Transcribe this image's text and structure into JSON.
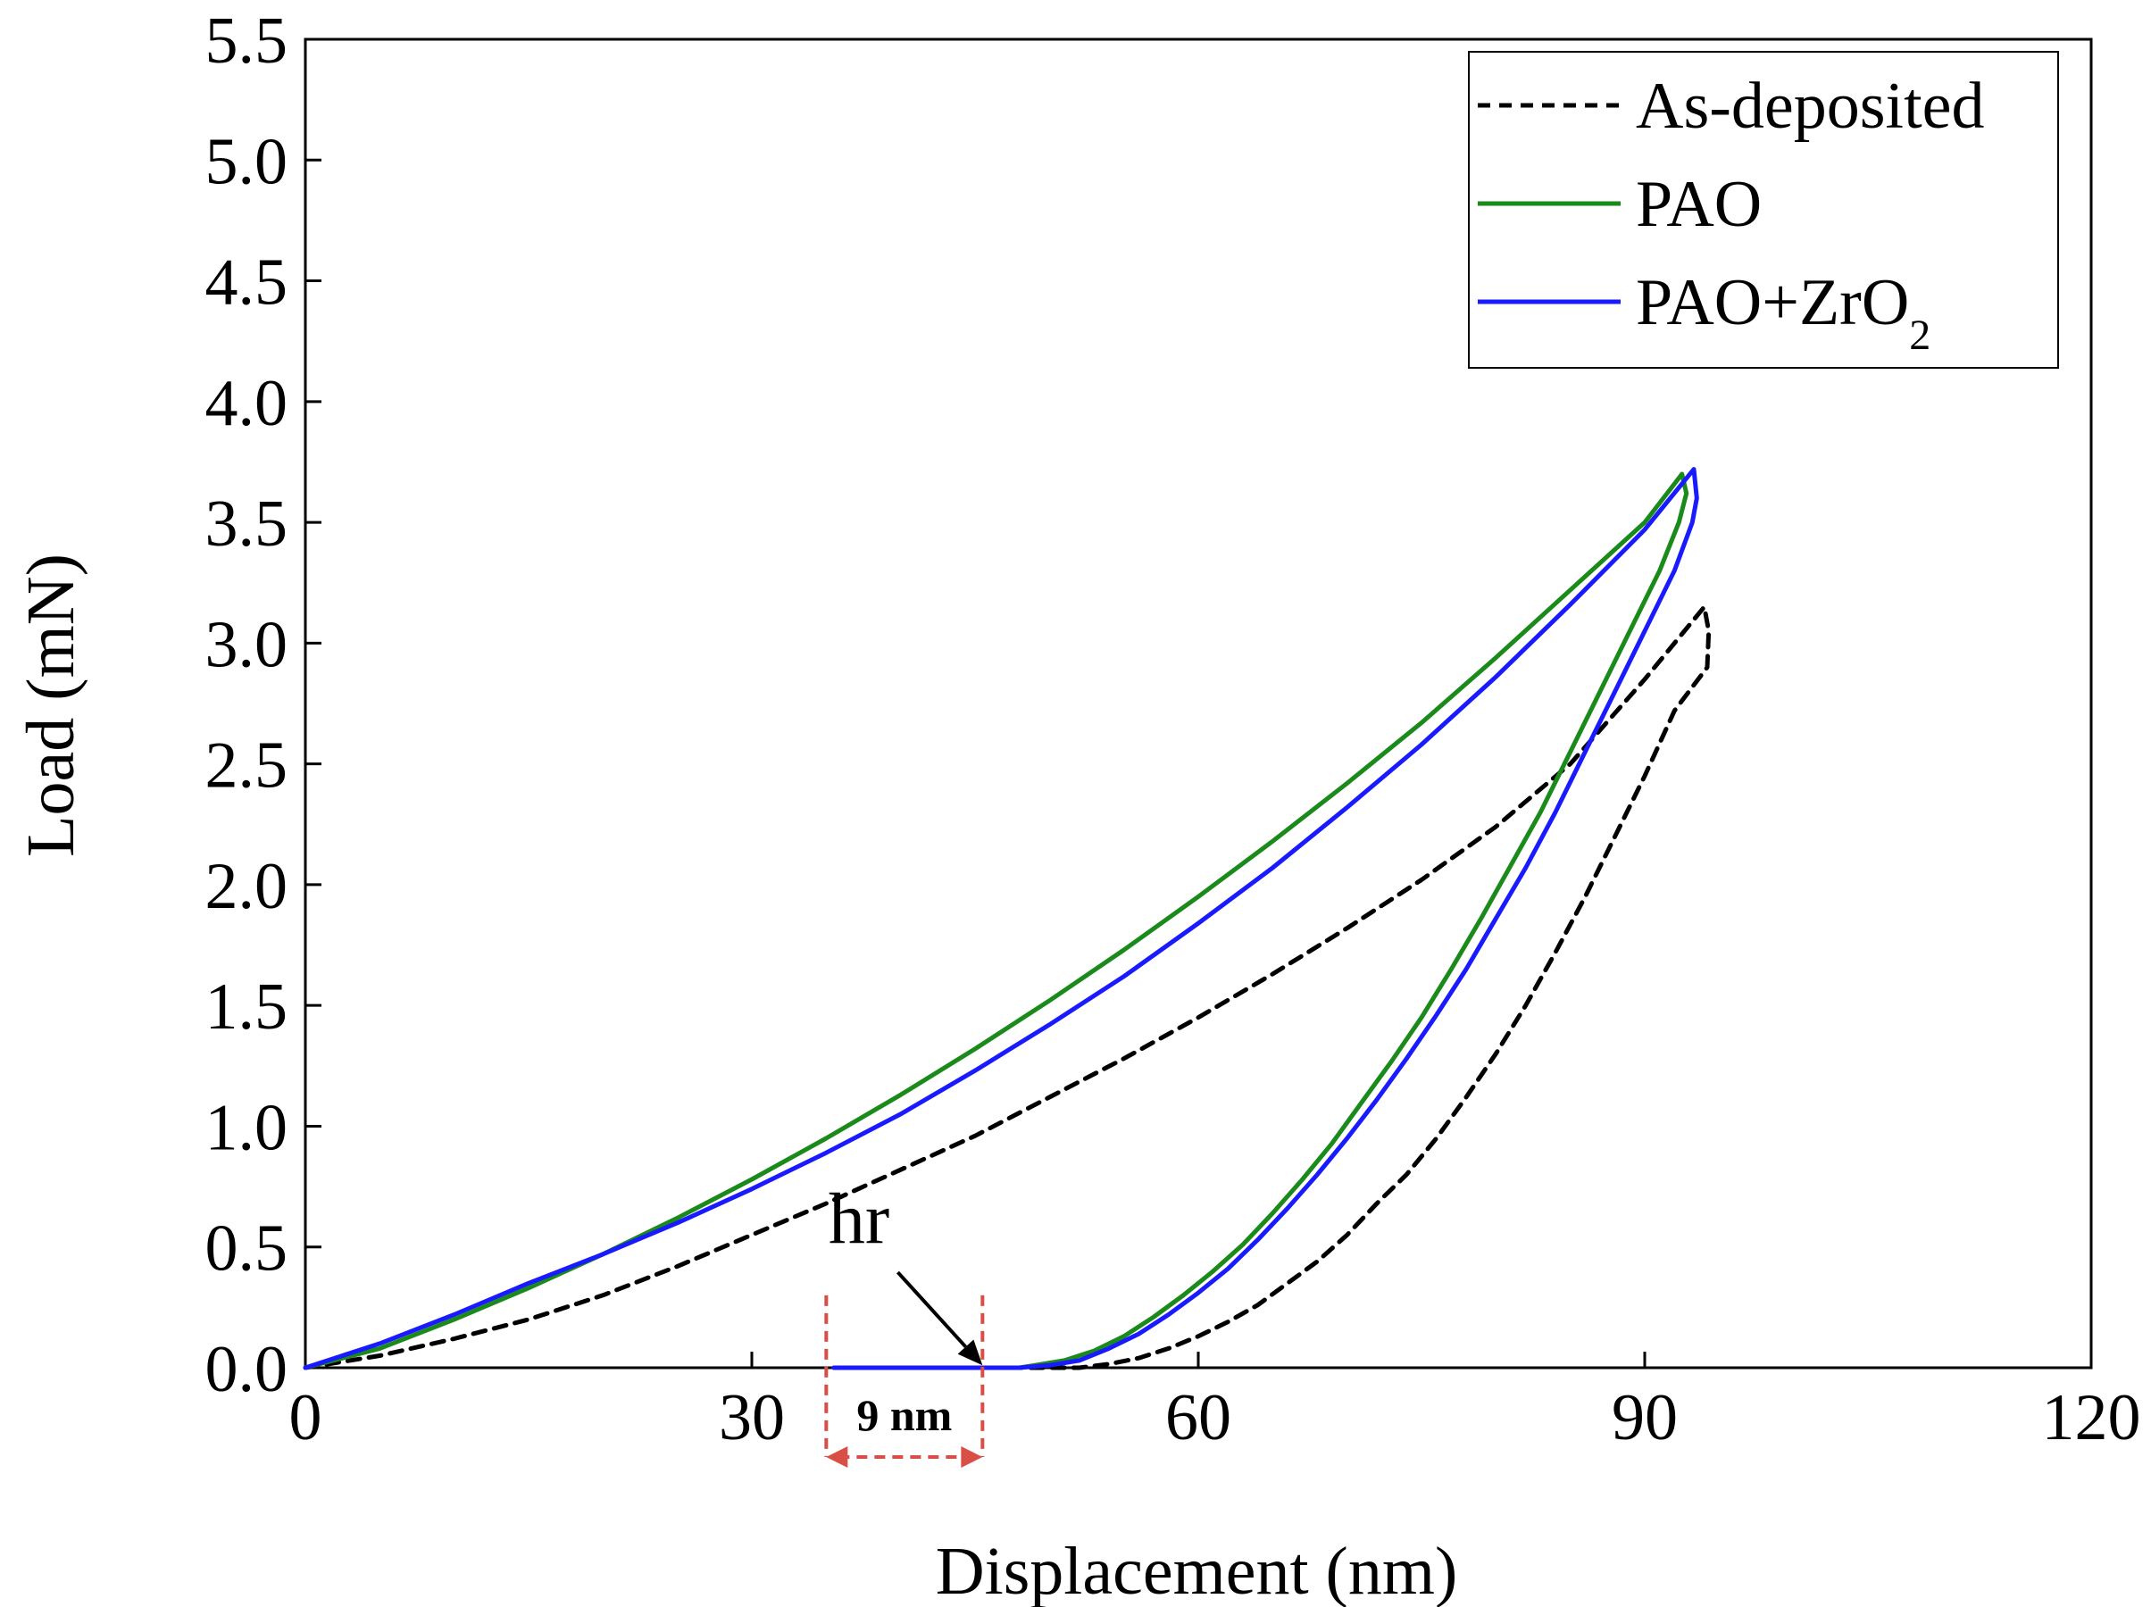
{
  "chart_data": {
    "type": "line",
    "title": "",
    "xlabel": "Displacement (nm)",
    "ylabel": "Load (mN)",
    "xlim": [
      0,
      120
    ],
    "ylim": [
      0,
      5.5
    ],
    "x_ticks": [
      0,
      30,
      60,
      90,
      120
    ],
    "x_tick_labels": [
      "0",
      "30",
      "60",
      "90",
      "120"
    ],
    "y_ticks": [
      0,
      0.5,
      1.0,
      1.5,
      2.0,
      2.5,
      3.0,
      3.5,
      4.0,
      4.5,
      5.0,
      5.5
    ],
    "y_tick_labels": [
      "0.0",
      "0.5",
      "1.0",
      "1.5",
      "2.0",
      "2.5",
      "3.0",
      "3.5",
      "4.0",
      "4.5",
      "5.0",
      "5.5"
    ],
    "grid": false,
    "legend_position": "top-right",
    "series": [
      {
        "name": "As-deposited",
        "legend_label": "As-deposited",
        "color": "#000000",
        "style": "dashed",
        "points": [
          [
            0,
            0
          ],
          [
            5,
            0.05
          ],
          [
            10,
            0.12
          ],
          [
            15,
            0.2
          ],
          [
            20,
            0.3
          ],
          [
            25,
            0.42
          ],
          [
            30,
            0.55
          ],
          [
            35,
            0.68
          ],
          [
            40,
            0.82
          ],
          [
            45,
            0.96
          ],
          [
            50,
            1.12
          ],
          [
            55,
            1.28
          ],
          [
            60,
            1.45
          ],
          [
            65,
            1.63
          ],
          [
            70,
            1.82
          ],
          [
            75,
            2.02
          ],
          [
            80,
            2.24
          ],
          [
            85,
            2.5
          ],
          [
            90,
            2.85
          ],
          [
            94,
            3.15
          ],
          [
            94.3,
            3.05
          ],
          [
            94.2,
            2.9
          ],
          [
            92,
            2.72
          ],
          [
            90,
            2.45
          ],
          [
            88,
            2.2
          ],
          [
            86,
            1.95
          ],
          [
            84,
            1.72
          ],
          [
            82,
            1.5
          ],
          [
            80,
            1.3
          ],
          [
            78,
            1.12
          ],
          [
            76,
            0.95
          ],
          [
            74,
            0.8
          ],
          [
            72,
            0.68
          ],
          [
            70,
            0.55
          ],
          [
            68,
            0.44
          ],
          [
            66,
            0.35
          ],
          [
            64,
            0.26
          ],
          [
            62,
            0.19
          ],
          [
            60,
            0.13
          ],
          [
            58,
            0.08
          ],
          [
            56,
            0.04
          ],
          [
            54,
            0.015
          ],
          [
            52,
            0.0
          ],
          [
            45,
            0.0
          ]
        ]
      },
      {
        "name": "PAO",
        "legend_label": "PAO",
        "color": "#1a8a1a",
        "style": "solid",
        "points": [
          [
            0,
            0
          ],
          [
            5,
            0.08
          ],
          [
            10,
            0.2
          ],
          [
            15,
            0.33
          ],
          [
            20,
            0.47
          ],
          [
            25,
            0.62
          ],
          [
            30,
            0.78
          ],
          [
            35,
            0.95
          ],
          [
            40,
            1.13
          ],
          [
            45,
            1.32
          ],
          [
            50,
            1.52
          ],
          [
            55,
            1.73
          ],
          [
            60,
            1.95
          ],
          [
            65,
            2.18
          ],
          [
            70,
            2.42
          ],
          [
            75,
            2.67
          ],
          [
            80,
            2.94
          ],
          [
            85,
            3.22
          ],
          [
            90,
            3.5
          ],
          [
            92.5,
            3.7
          ],
          [
            92.8,
            3.62
          ],
          [
            92.3,
            3.5
          ],
          [
            91,
            3.3
          ],
          [
            89,
            3.05
          ],
          [
            87,
            2.8
          ],
          [
            85,
            2.55
          ],
          [
            83,
            2.3
          ],
          [
            81,
            2.08
          ],
          [
            79,
            1.86
          ],
          [
            77,
            1.65
          ],
          [
            75,
            1.45
          ],
          [
            73,
            1.27
          ],
          [
            71,
            1.1
          ],
          [
            69,
            0.93
          ],
          [
            67,
            0.78
          ],
          [
            65,
            0.64
          ],
          [
            63,
            0.51
          ],
          [
            61,
            0.4
          ],
          [
            59,
            0.3
          ],
          [
            57,
            0.21
          ],
          [
            55,
            0.13
          ],
          [
            53,
            0.07
          ],
          [
            51,
            0.03
          ],
          [
            49,
            0.01
          ],
          [
            48,
            0.0
          ],
          [
            36,
            0.0
          ]
        ]
      },
      {
        "name": "PAO+ZrO2",
        "legend_label": "PAO+ZrO",
        "legend_sub": "2",
        "color": "#1a1aff",
        "style": "solid",
        "points": [
          [
            0,
            0
          ],
          [
            5,
            0.1
          ],
          [
            10,
            0.22
          ],
          [
            15,
            0.35
          ],
          [
            20,
            0.47
          ],
          [
            25,
            0.6
          ],
          [
            30,
            0.74
          ],
          [
            35,
            0.89
          ],
          [
            40,
            1.05
          ],
          [
            45,
            1.23
          ],
          [
            50,
            1.42
          ],
          [
            55,
            1.62
          ],
          [
            60,
            1.84
          ],
          [
            65,
            2.07
          ],
          [
            70,
            2.32
          ],
          [
            75,
            2.58
          ],
          [
            80,
            2.86
          ],
          [
            85,
            3.16
          ],
          [
            90,
            3.47
          ],
          [
            93.3,
            3.72
          ],
          [
            93.5,
            3.6
          ],
          [
            93.2,
            3.5
          ],
          [
            92,
            3.3
          ],
          [
            90,
            3.05
          ],
          [
            88,
            2.8
          ],
          [
            86,
            2.55
          ],
          [
            84,
            2.3
          ],
          [
            82,
            2.07
          ],
          [
            80,
            1.86
          ],
          [
            78,
            1.65
          ],
          [
            76,
            1.46
          ],
          [
            74,
            1.28
          ],
          [
            72,
            1.11
          ],
          [
            70,
            0.95
          ],
          [
            68,
            0.8
          ],
          [
            66,
            0.66
          ],
          [
            64,
            0.53
          ],
          [
            62,
            0.41
          ],
          [
            60,
            0.31
          ],
          [
            58,
            0.22
          ],
          [
            56,
            0.14
          ],
          [
            54,
            0.08
          ],
          [
            52,
            0.03
          ],
          [
            50,
            0.01
          ],
          [
            48,
            0.0
          ],
          [
            35.5,
            0.0
          ]
        ]
      }
    ],
    "annotations": {
      "hr_label": "hr",
      "hr_arrow_from": [
        39,
        0.45
      ],
      "hr_arrow_to": [
        45.5,
        0.01
      ],
      "gap_label": "9 nm",
      "gap_x_start": 35,
      "gap_x_end": 45.5,
      "gap_color": "#d94f45"
    }
  }
}
